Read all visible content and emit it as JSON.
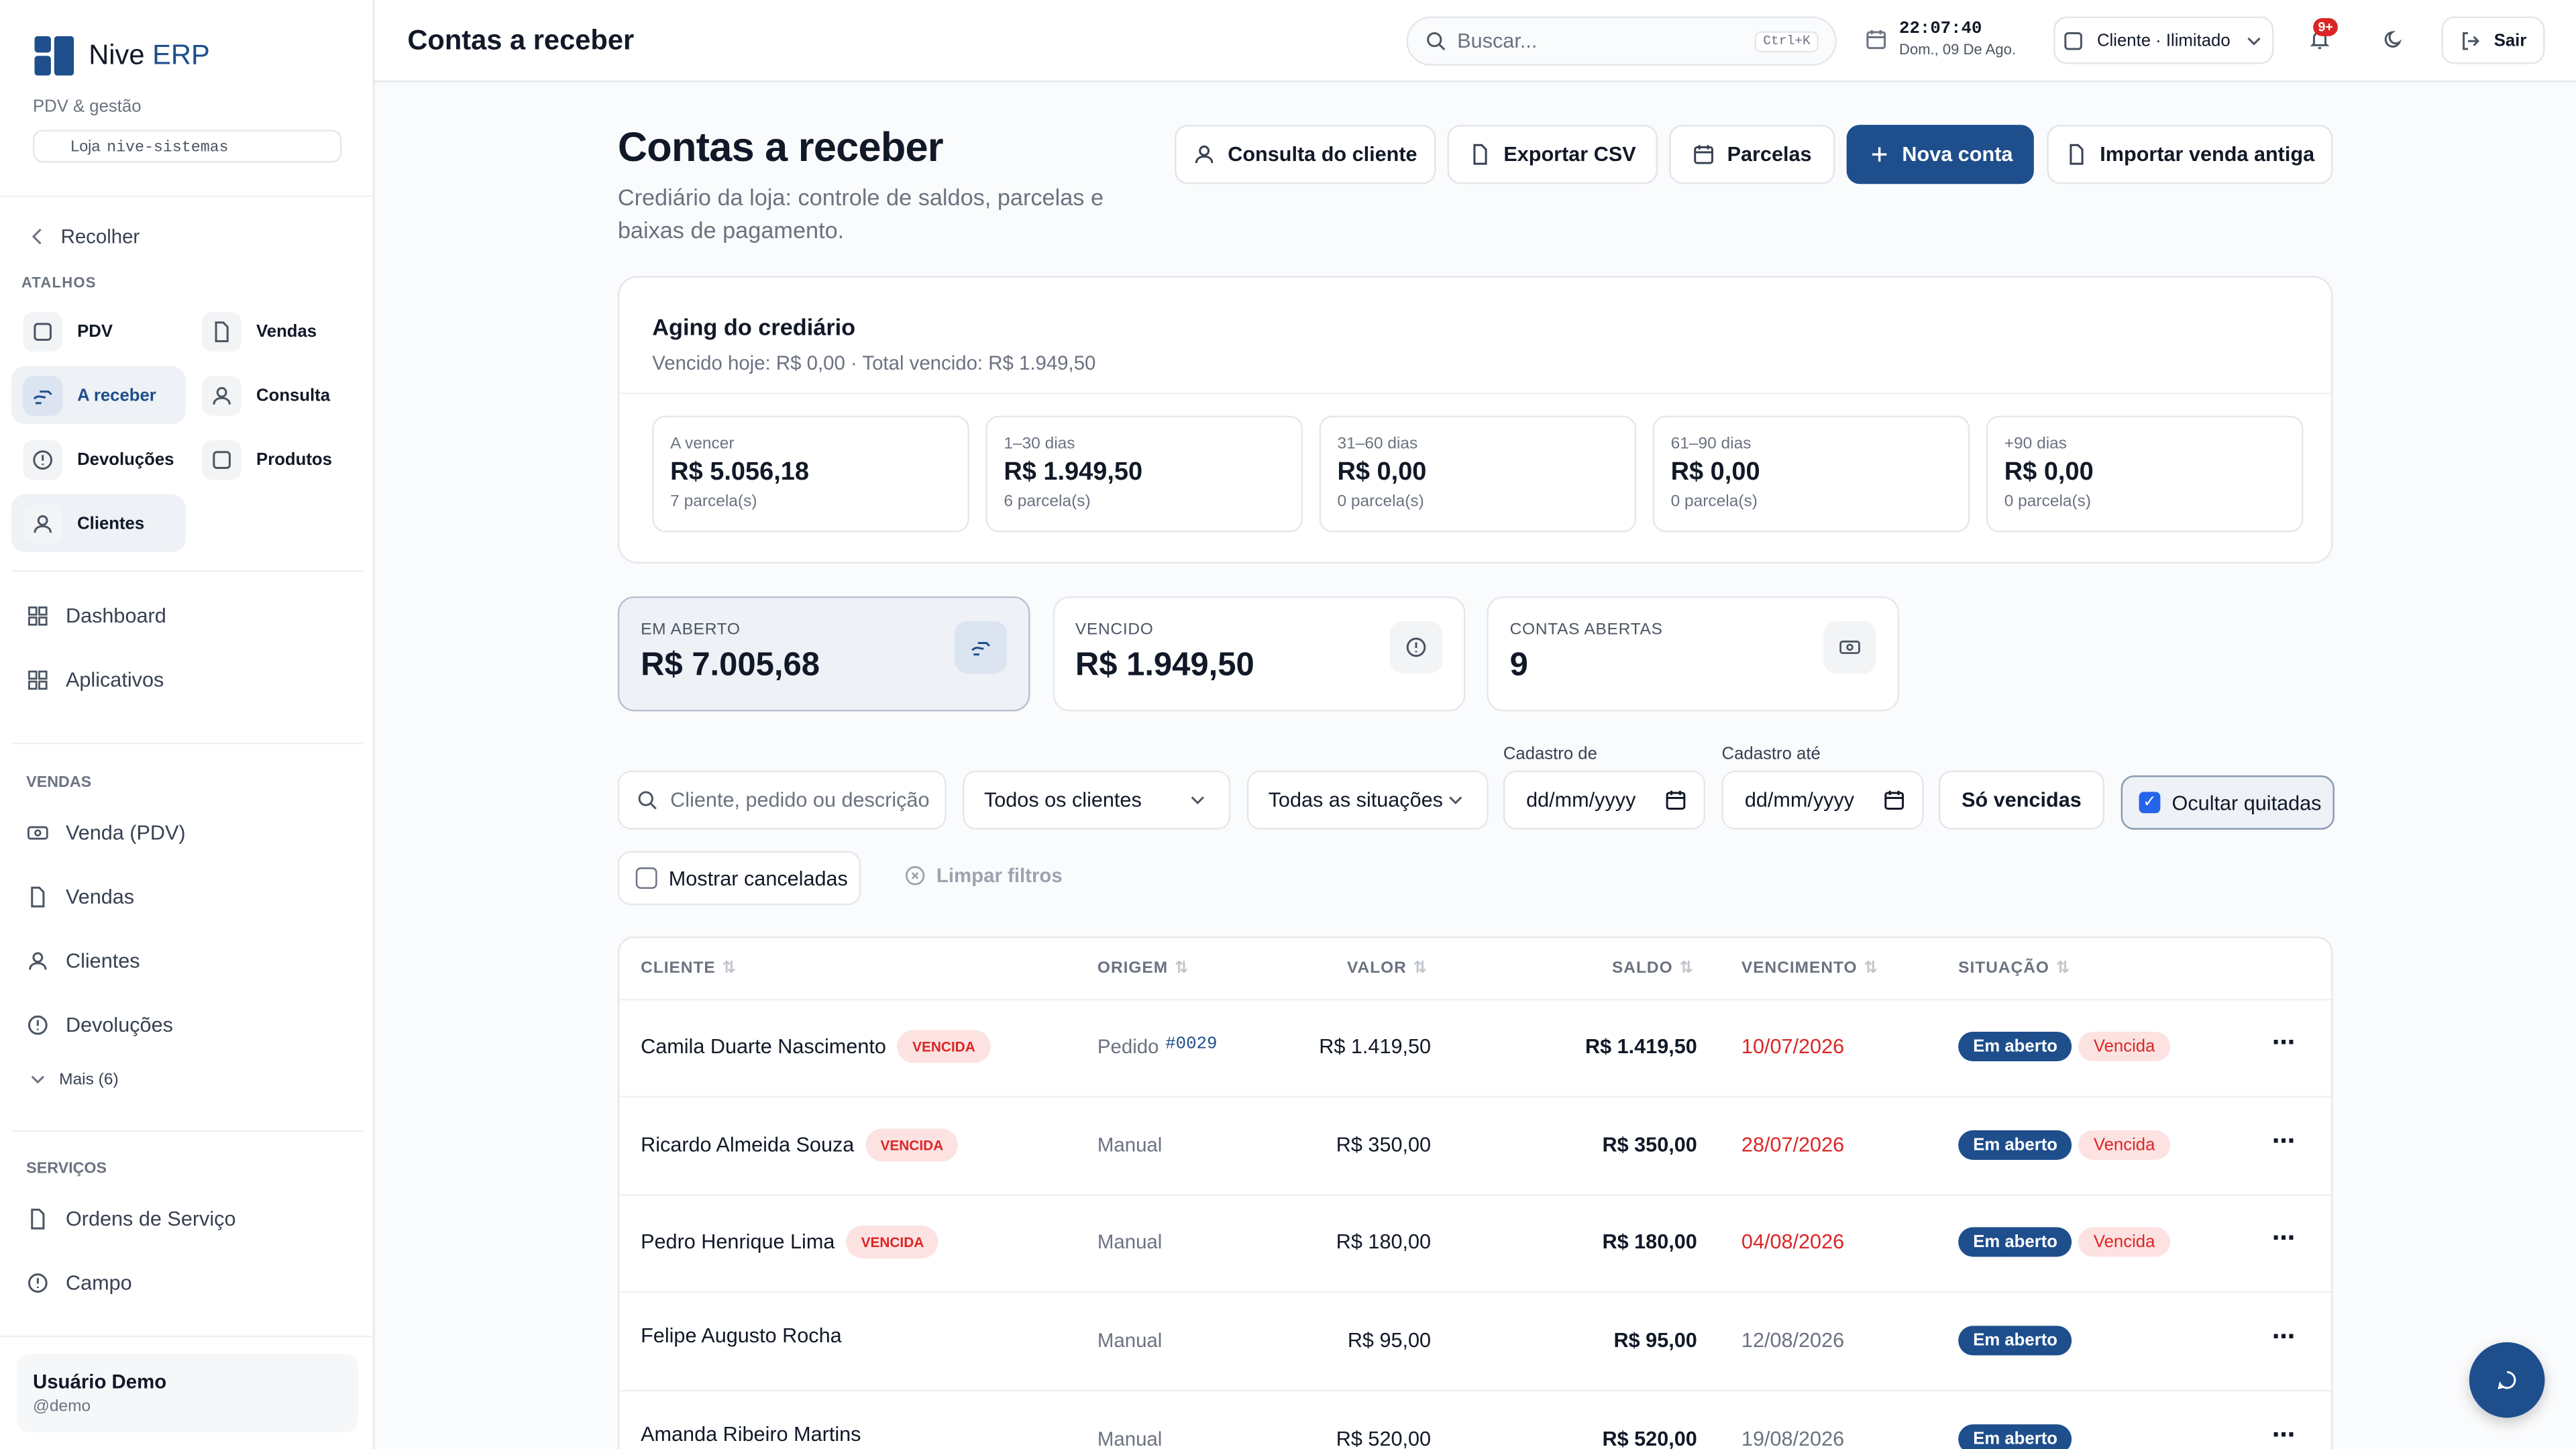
{
  "brand": {
    "name": "Nive",
    "accent": "ERP",
    "subtitle": "PDV & gestão",
    "store_label": "Loja",
    "store_id": "nive-sistemas"
  },
  "topbar": {
    "title": "Contas a receber",
    "search": "Buscar...",
    "shortcut": "Ctrl+K",
    "time": "22:07:40",
    "date": "Dom., 09 De Ago.",
    "plan": "Cliente · Ilimitado",
    "notifications": "9+",
    "logout": "Sair"
  },
  "sidebar": {
    "collapse": "Recolher",
    "shortcuts_title": "ATALHOS",
    "shortcuts": [
      "PDV",
      "Vendas",
      "A receber",
      "Consulta",
      "Devoluções",
      "Produtos",
      "Clientes"
    ],
    "nav": [
      "Dashboard",
      "Aplicativos"
    ],
    "sections": [
      {
        "title": "VENDAS",
        "items": [
          "Venda (PDV)",
          "Vendas",
          "Clientes",
          "Devoluções"
        ],
        "more": "Mais (6)"
      },
      {
        "title": "SERVIÇOS",
        "items": [
          "Ordens de Serviço",
          "Campo"
        ]
      }
    ],
    "user": {
      "name": "Usuário Demo",
      "handle": "@demo"
    }
  },
  "page": {
    "title": "Contas a receber",
    "subtitle": "Crediário da loja: controle de saldos, parcelas e baixas de pagamento.",
    "actions": [
      "Consulta do cliente",
      "Exportar CSV",
      "Parcelas",
      "Nova conta",
      "Importar venda antiga"
    ]
  },
  "aging": {
    "title": "Aging do crediário",
    "summary": "Vencido hoje: R$ 0,00 · Total vencido: R$ 1.949,50",
    "buckets": [
      {
        "label": "A vencer",
        "amount": "R$ 5.056,18",
        "count": "7 parcela(s)"
      },
      {
        "label": "1–30 dias",
        "amount": "R$ 1.949,50",
        "count": "6 parcela(s)"
      },
      {
        "label": "31–60 dias",
        "amount": "R$ 0,00",
        "count": "0 parcela(s)"
      },
      {
        "label": "61–90 dias",
        "amount": "R$ 0,00",
        "count": "0 parcela(s)"
      },
      {
        "label": "+90 dias",
        "amount": "R$ 0,00",
        "count": "0 parcela(s)"
      }
    ]
  },
  "stats": [
    {
      "label": "EM ABERTO",
      "value": "R$ 7.005,68"
    },
    {
      "label": "VENCIDO",
      "value": "R$ 1.949,50"
    },
    {
      "label": "CONTAS ABERTAS",
      "value": "9"
    }
  ],
  "filters": {
    "search": "Cliente, pedido ou descrição",
    "client": "Todos os clientes",
    "status": "Todas as situações",
    "date_from": "Cadastro de",
    "date_to": "Cadastro até",
    "date_placeholder": "dd/mm/yyyy",
    "only_overdue": "Só vencidas",
    "hide_paid": "Ocultar quitadas",
    "show_canceled": "Mostrar canceladas",
    "clear": "Limpar filtros"
  },
  "table": {
    "columns": [
      "CLIENTE",
      "ORIGEM",
      "VALOR",
      "SALDO",
      "VENCIMENTO",
      "SITUAÇÃO"
    ],
    "rows": [
      {
        "client": "Camila Duarte Nascimento",
        "tag": "VENCIDA",
        "origin": "Pedido",
        "code": "#0029",
        "valor": "R$ 1.419,50",
        "saldo": "R$ 1.419,50",
        "due": "10/07/2026",
        "status": [
          "Em aberto",
          "Vencida"
        ]
      },
      {
        "client": "Ricardo Almeida Souza",
        "tag": "VENCIDA",
        "origin": "Manual",
        "valor": "R$ 350,00",
        "saldo": "R$ 350,00",
        "due": "28/07/2026",
        "status": [
          "Em aberto",
          "Vencida"
        ]
      },
      {
        "client": "Pedro Henrique Lima",
        "tag": "VENCIDA",
        "origin": "Manual",
        "valor": "R$ 180,00",
        "saldo": "R$ 180,00",
        "due": "04/08/2026",
        "status": [
          "Em aberto",
          "Vencida"
        ]
      },
      {
        "client": "Felipe Augusto Rocha",
        "origin": "Manual",
        "valor": "R$ 95,00",
        "saldo": "R$ 95,00",
        "due": "12/08/2026",
        "status": [
          "Em aberto"
        ]
      },
      {
        "client": "Amanda Ribeiro Martins",
        "origin": "Manual",
        "valor": "R$ 520,00",
        "saldo": "R$ 520,00",
        "due": "19/08/2026",
        "status": [
          "Em aberto"
        ]
      }
    ]
  }
}
